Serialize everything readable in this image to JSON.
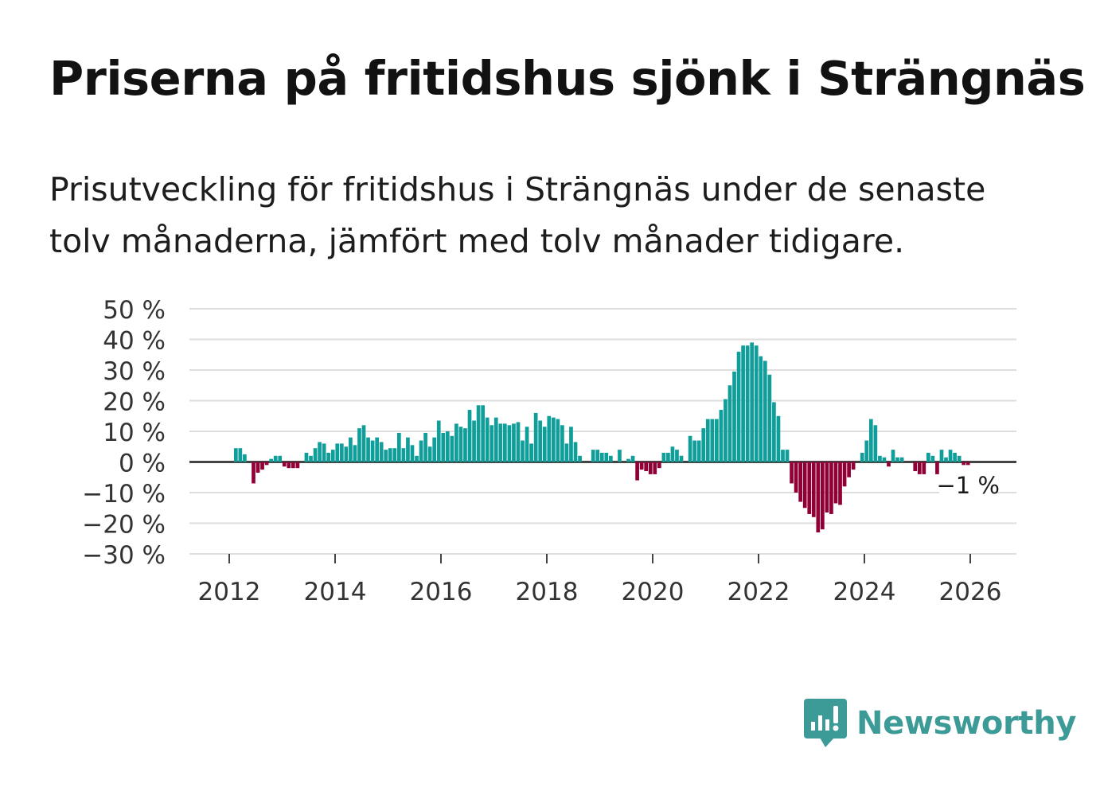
{
  "title": "Priserna på fritidshus sjönk i Strängnäs",
  "subtitle": "Prisutveckling för fritidshus i Strängnäs under de senaste tolv månaderna, jämfört med tolv månader tidigare.",
  "brand": {
    "name": "Newsworthy",
    "icon": "bar-chart-speech-bubble-icon"
  },
  "colors": {
    "positive": "#0f9e99",
    "negative": "#900036",
    "grid": "#dedede",
    "zero_line": "#444444"
  },
  "chart_data": {
    "type": "bar",
    "unit": "%",
    "start": "2011-05",
    "ylim": [
      -30,
      50
    ],
    "yticks": [
      50,
      40,
      30,
      20,
      10,
      0,
      -10,
      -20,
      -30
    ],
    "ytick_labels": [
      "50 %",
      "40 %",
      "30 %",
      "20 %",
      "10 %",
      "0 %",
      "−10 %",
      "−20 %",
      "−30 %"
    ],
    "xticks": [
      "2012",
      "2014",
      "2016",
      "2018",
      "2020",
      "2022",
      "2024",
      "2026"
    ],
    "last_label": "−1 %",
    "values": [
      0,
      0,
      0,
      0,
      0,
      0,
      0,
      0,
      0,
      4.5,
      4.5,
      2.5,
      0,
      -7,
      -3.5,
      -2.5,
      -1,
      1,
      2,
      2,
      -1.5,
      -2,
      -2,
      -2,
      0,
      3,
      2,
      4.5,
      6.5,
      6,
      3,
      4,
      6,
      6,
      5,
      8,
      5.5,
      11,
      12,
      8,
      7,
      8,
      6.5,
      4,
      4.5,
      4.5,
      9.5,
      4.5,
      8,
      5.5,
      2,
      7,
      9.5,
      5,
      8,
      13.5,
      9.5,
      10,
      8.5,
      12.5,
      11.5,
      11,
      17,
      13.5,
      18.5,
      18.5,
      14.5,
      12,
      14.5,
      12.5,
      12.5,
      12,
      12.5,
      13,
      7,
      11.5,
      6,
      16,
      13.5,
      11.5,
      15,
      14.5,
      14,
      12,
      6,
      11.5,
      6.5,
      2,
      0,
      0,
      4,
      4,
      3,
      3,
      2,
      0,
      4,
      0,
      1,
      2,
      -6,
      -2.5,
      -3,
      -4,
      -4,
      -2,
      3,
      3,
      5,
      4,
      2,
      0,
      8.5,
      7,
      7,
      11,
      14,
      14,
      14,
      17,
      20.5,
      25,
      29.5,
      36,
      38,
      38,
      39,
      38,
      34.5,
      33,
      28.5,
      19.5,
      15,
      4,
      4,
      -7,
      -10,
      -13,
      -15,
      -17,
      -18,
      -23,
      -22,
      -16.5,
      -17,
      -13.5,
      -14,
      -8,
      -5,
      -2.5,
      0,
      3,
      7,
      14,
      12,
      2,
      1.5,
      -1.5,
      4,
      1.5,
      1.5,
      0,
      0,
      -3,
      -4,
      -4,
      3,
      2,
      -4,
      4,
      1.5,
      4,
      3,
      2,
      -1,
      -1
    ]
  }
}
